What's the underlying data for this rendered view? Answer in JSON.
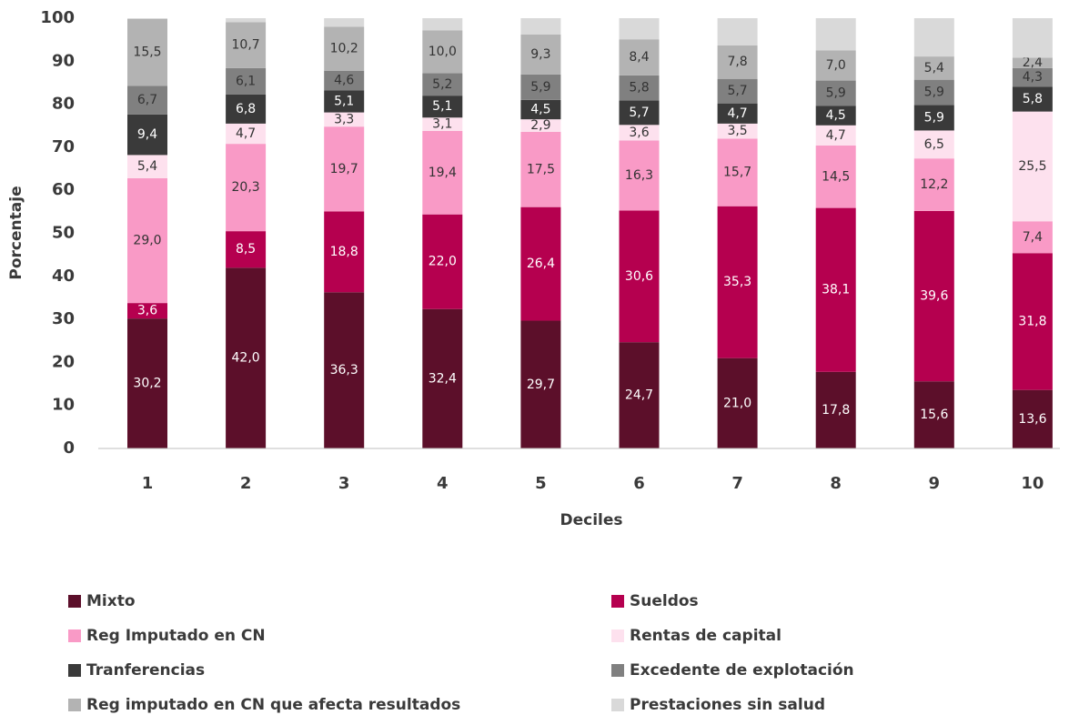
{
  "chart_data": {
    "type": "stacked_bar",
    "x_label": "Deciles",
    "y_label": "Porcentaje",
    "categories": [
      "1",
      "2",
      "3",
      "4",
      "5",
      "6",
      "7",
      "8",
      "9",
      "10"
    ],
    "ylim": [
      0,
      100
    ],
    "yticks": [
      0,
      10,
      20,
      30,
      40,
      50,
      60,
      70,
      80,
      90,
      100
    ],
    "series": [
      {
        "name": "Mixto",
        "color": "#5c0f2a",
        "values": [
          30.2,
          42.0,
          36.3,
          32.4,
          29.7,
          24.7,
          21.0,
          17.8,
          15.6,
          13.6
        ],
        "value_labels": [
          "30,2",
          "42,0",
          "36,3",
          "32,4",
          "29,7",
          "24,7",
          "21,0",
          "17,8",
          "15,6",
          "13,6"
        ]
      },
      {
        "name": "Sueldos",
        "color": "#b5004f",
        "values": [
          3.6,
          8.5,
          18.8,
          22.0,
          26.4,
          30.6,
          35.3,
          38.1,
          39.6,
          31.8
        ],
        "value_labels": [
          "3,6",
          "8,5",
          "18,8",
          "22,0",
          "26,4",
          "30,6",
          "35,3",
          "38,1",
          "39,6",
          "31,8"
        ]
      },
      {
        "name": "Reg Imputado en CN",
        "color": "#f99ac6",
        "values": [
          29.0,
          20.3,
          19.7,
          19.4,
          17.5,
          16.3,
          15.7,
          14.5,
          12.2,
          7.4
        ],
        "value_labels": [
          "29,0",
          "20,3",
          "19,7",
          "19,4",
          "17,5",
          "16,3",
          "15,7",
          "14,5",
          "12,2",
          "7,4"
        ]
      },
      {
        "name": "Rentas de capital",
        "color": "#fde1ee",
        "values": [
          5.4,
          4.7,
          3.3,
          3.1,
          2.9,
          3.6,
          3.5,
          4.7,
          6.5,
          25.5
        ],
        "value_labels": [
          "5,4",
          "4,7",
          "3,3",
          "3,1",
          "2,9",
          "3,6",
          "3,5",
          "4,7",
          "6,5",
          "25,5"
        ]
      },
      {
        "name": "Tranferencias",
        "color": "#3a3a3a",
        "values": [
          9.4,
          6.8,
          5.1,
          5.1,
          4.5,
          5.7,
          4.7,
          4.5,
          5.9,
          5.8
        ],
        "value_labels": [
          "9,4",
          "6,8",
          "5,1",
          "5,1",
          "4,5",
          "5,7",
          "4,7",
          "4,5",
          "5,9",
          "5,8"
        ]
      },
      {
        "name": "Excedente de explotación",
        "color": "#808080",
        "values": [
          6.7,
          6.1,
          4.6,
          5.2,
          5.9,
          5.8,
          5.7,
          5.9,
          5.9,
          4.3
        ],
        "value_labels": [
          "6,7",
          "6,1",
          "4,6",
          "5,2",
          "5,9",
          "5,8",
          "5,7",
          "5,9",
          "5,9",
          "4,3"
        ]
      },
      {
        "name": "Reg imputado en CN que afecta resultados",
        "color": "#b3b3b3",
        "values": [
          15.5,
          10.7,
          10.2,
          10.0,
          9.3,
          8.4,
          7.8,
          7.0,
          5.4,
          2.4
        ],
        "value_labels": [
          "15,5",
          "10,7",
          "10,2",
          "10,0",
          "9,3",
          "8,4",
          "7,8",
          "7,0",
          "5,4",
          "2,4"
        ]
      },
      {
        "name": "Prestaciones  sin salud",
        "color": "#d9d9d9",
        "values": [
          0.2,
          0.9,
          2.0,
          2.8,
          3.8,
          4.9,
          6.3,
          7.5,
          8.9,
          9.2
        ]
      }
    ]
  }
}
